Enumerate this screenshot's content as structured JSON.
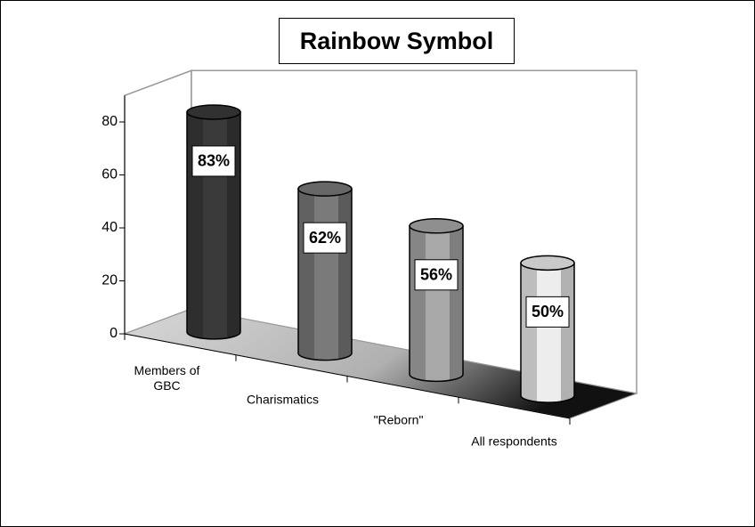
{
  "chart_data": {
    "type": "bar3d",
    "title": "Rainbow Symbol",
    "categories": [
      "Members of GBC",
      "Charismatics",
      "\"Reborn\"",
      "All respondents"
    ],
    "values": [
      83,
      62,
      56,
      50
    ],
    "value_labels": [
      "83%",
      "62%",
      "56%",
      "50%"
    ],
    "colors": [
      "#3a3a3a",
      "#7a7a7a",
      "#a8a8a8",
      "#ededed"
    ],
    "ylim": [
      0,
      90
    ],
    "yticks": [
      0,
      20,
      40,
      60,
      80
    ]
  }
}
